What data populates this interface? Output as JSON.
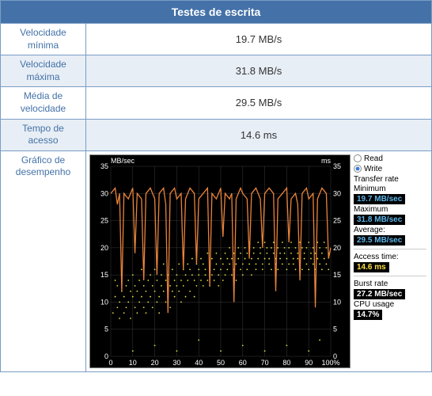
{
  "header": {
    "title": "Testes de escrita"
  },
  "rows": [
    {
      "label": "Velocidade mínima",
      "value": "19.7 MB/s"
    },
    {
      "label": "Velocidade máxima",
      "value": "31.8 MB/s"
    },
    {
      "label": "Média de velocidade",
      "value": "29.5 MB/s"
    },
    {
      "label": "Tempo de acesso",
      "value": "14.6 ms"
    }
  ],
  "chart_row_label": "Gráfico de desempenho",
  "chart": {
    "type": "line+scatter",
    "bg": "#000000",
    "line_color": "#e8833b",
    "scatter_color": "#e8e040",
    "grid_color": "#3a3a3a",
    "y_left_label": "MB/sec",
    "y_right_label": "ms",
    "y_ticks": [
      0,
      5,
      10,
      15,
      20,
      25,
      30,
      35
    ],
    "ylim": [
      0,
      35
    ],
    "x_ticks": [
      0,
      10,
      20,
      30,
      40,
      50,
      60,
      70,
      80,
      90,
      "100%"
    ],
    "xlim": [
      0,
      100
    ],
    "write_line": [
      [
        0,
        30
      ],
      [
        2,
        31
      ],
      [
        3,
        28
      ],
      [
        4,
        30
      ],
      [
        5,
        12
      ],
      [
        6,
        30
      ],
      [
        8,
        29
      ],
      [
        10,
        31
      ],
      [
        11,
        19
      ],
      [
        12,
        30
      ],
      [
        14,
        29
      ],
      [
        15,
        14
      ],
      [
        16,
        30
      ],
      [
        18,
        31
      ],
      [
        20,
        29
      ],
      [
        21,
        15
      ],
      [
        22,
        30
      ],
      [
        24,
        31
      ],
      [
        25,
        28
      ],
      [
        26,
        8
      ],
      [
        27,
        30
      ],
      [
        29,
        31
      ],
      [
        30,
        29
      ],
      [
        32,
        30
      ],
      [
        33,
        16
      ],
      [
        34,
        29
      ],
      [
        36,
        31
      ],
      [
        38,
        30
      ],
      [
        39,
        17
      ],
      [
        40,
        29
      ],
      [
        42,
        30
      ],
      [
        44,
        31
      ],
      [
        45,
        13
      ],
      [
        46,
        30
      ],
      [
        48,
        29
      ],
      [
        50,
        31
      ],
      [
        51,
        22
      ],
      [
        52,
        30
      ],
      [
        54,
        29
      ],
      [
        55,
        30
      ],
      [
        56,
        10
      ],
      [
        57,
        29
      ],
      [
        59,
        31
      ],
      [
        60,
        30
      ],
      [
        62,
        29
      ],
      [
        63,
        18
      ],
      [
        64,
        30
      ],
      [
        66,
        31
      ],
      [
        68,
        29
      ],
      [
        69,
        20
      ],
      [
        70,
        30
      ],
      [
        72,
        31
      ],
      [
        74,
        30
      ],
      [
        75,
        12
      ],
      [
        76,
        29
      ],
      [
        78,
        30
      ],
      [
        80,
        31
      ],
      [
        81,
        21
      ],
      [
        82,
        29
      ],
      [
        84,
        30
      ],
      [
        85,
        28
      ],
      [
        86,
        14
      ],
      [
        87,
        30
      ],
      [
        89,
        31
      ],
      [
        90,
        29
      ],
      [
        92,
        30
      ],
      [
        93,
        9
      ],
      [
        94,
        29
      ],
      [
        96,
        31
      ],
      [
        98,
        30
      ],
      [
        99,
        18
      ],
      [
        100,
        20
      ]
    ],
    "access_scatter": [
      [
        1,
        8
      ],
      [
        2,
        11
      ],
      [
        2,
        14
      ],
      [
        3,
        9
      ],
      [
        3,
        13
      ],
      [
        4,
        10
      ],
      [
        4,
        7
      ],
      [
        5,
        12
      ],
      [
        5,
        15
      ],
      [
        6,
        8
      ],
      [
        6,
        11
      ],
      [
        7,
        13
      ],
      [
        7,
        9
      ],
      [
        8,
        10
      ],
      [
        8,
        14
      ],
      [
        9,
        12
      ],
      [
        9,
        7
      ],
      [
        10,
        11
      ],
      [
        10,
        15
      ],
      [
        11,
        9
      ],
      [
        11,
        13
      ],
      [
        12,
        8
      ],
      [
        12,
        12
      ],
      [
        13,
        14
      ],
      [
        13,
        10
      ],
      [
        14,
        11
      ],
      [
        14,
        16
      ],
      [
        15,
        9
      ],
      [
        15,
        13
      ],
      [
        16,
        12
      ],
      [
        16,
        8
      ],
      [
        17,
        14
      ],
      [
        17,
        10
      ],
      [
        18,
        11
      ],
      [
        18,
        15
      ],
      [
        19,
        13
      ],
      [
        19,
        9
      ],
      [
        20,
        12
      ],
      [
        20,
        16
      ],
      [
        21,
        14
      ],
      [
        21,
        10
      ],
      [
        22,
        11
      ],
      [
        22,
        8
      ],
      [
        23,
        15
      ],
      [
        23,
        13
      ],
      [
        24,
        12
      ],
      [
        24,
        17
      ],
      [
        25,
        14
      ],
      [
        25,
        10
      ],
      [
        26,
        11
      ],
      [
        26,
        15
      ],
      [
        27,
        13
      ],
      [
        27,
        9
      ],
      [
        28,
        16
      ],
      [
        28,
        12
      ],
      [
        29,
        14
      ],
      [
        29,
        11
      ],
      [
        30,
        15
      ],
      [
        30,
        13
      ],
      [
        31,
        17
      ],
      [
        31,
        12
      ],
      [
        32,
        14
      ],
      [
        32,
        10
      ],
      [
        33,
        16
      ],
      [
        33,
        13
      ],
      [
        34,
        15
      ],
      [
        34,
        11
      ],
      [
        35,
        17
      ],
      [
        35,
        14
      ],
      [
        36,
        16
      ],
      [
        36,
        12
      ],
      [
        37,
        15
      ],
      [
        37,
        18
      ],
      [
        38,
        14
      ],
      [
        38,
        11
      ],
      [
        39,
        17
      ],
      [
        39,
        13
      ],
      [
        40,
        16
      ],
      [
        40,
        15
      ],
      [
        41,
        14
      ],
      [
        41,
        18
      ],
      [
        42,
        17
      ],
      [
        42,
        13
      ],
      [
        43,
        16
      ],
      [
        43,
        15
      ],
      [
        44,
        14
      ],
      [
        44,
        19
      ],
      [
        45,
        17
      ],
      [
        45,
        13
      ],
      [
        46,
        18
      ],
      [
        46,
        15
      ],
      [
        47,
        16
      ],
      [
        47,
        14
      ],
      [
        48,
        19
      ],
      [
        48,
        17
      ],
      [
        49,
        15
      ],
      [
        49,
        13
      ],
      [
        50,
        18
      ],
      [
        50,
        16
      ],
      [
        51,
        17
      ],
      [
        51,
        14
      ],
      [
        52,
        19
      ],
      [
        52,
        15
      ],
      [
        53,
        18
      ],
      [
        53,
        16
      ],
      [
        54,
        17
      ],
      [
        54,
        20
      ],
      [
        55,
        15
      ],
      [
        55,
        18
      ],
      [
        56,
        19
      ],
      [
        56,
        16
      ],
      [
        57,
        17
      ],
      [
        57,
        14
      ],
      [
        58,
        20
      ],
      [
        58,
        18
      ],
      [
        59,
        16
      ],
      [
        59,
        19
      ],
      [
        60,
        17
      ],
      [
        60,
        15
      ],
      [
        61,
        18
      ],
      [
        61,
        20
      ],
      [
        62,
        19
      ],
      [
        62,
        16
      ],
      [
        63,
        17
      ],
      [
        63,
        21
      ],
      [
        64,
        18
      ],
      [
        64,
        15
      ],
      [
        65,
        20
      ],
      [
        65,
        19
      ],
      [
        66,
        17
      ],
      [
        66,
        16
      ],
      [
        67,
        21
      ],
      [
        67,
        18
      ],
      [
        68,
        19
      ],
      [
        68,
        20
      ],
      [
        69,
        17
      ],
      [
        69,
        16
      ],
      [
        70,
        18
      ],
      [
        70,
        21
      ],
      [
        71,
        20
      ],
      [
        71,
        19
      ],
      [
        72,
        17
      ],
      [
        72,
        18
      ],
      [
        73,
        16
      ],
      [
        73,
        20
      ],
      [
        74,
        19
      ],
      [
        74,
        21
      ],
      [
        75,
        18
      ],
      [
        75,
        17
      ],
      [
        76,
        20
      ],
      [
        76,
        16
      ],
      [
        77,
        19
      ],
      [
        77,
        18
      ],
      [
        78,
        21
      ],
      [
        78,
        17
      ],
      [
        79,
        20
      ],
      [
        79,
        19
      ],
      [
        80,
        18
      ],
      [
        80,
        16
      ],
      [
        81,
        17
      ],
      [
        81,
        20
      ],
      [
        82,
        19
      ],
      [
        82,
        21
      ],
      [
        83,
        18
      ],
      [
        83,
        17
      ],
      [
        84,
        16
      ],
      [
        84,
        20
      ],
      [
        85,
        19
      ],
      [
        85,
        18
      ],
      [
        86,
        17
      ],
      [
        86,
        21
      ],
      [
        87,
        20
      ],
      [
        87,
        16
      ],
      [
        88,
        19
      ],
      [
        88,
        18
      ],
      [
        89,
        17
      ],
      [
        89,
        20
      ],
      [
        90,
        21
      ],
      [
        90,
        16
      ],
      [
        91,
        19
      ],
      [
        91,
        18
      ],
      [
        92,
        17
      ],
      [
        92,
        20
      ],
      [
        93,
        16
      ],
      [
        93,
        19
      ],
      [
        94,
        18
      ],
      [
        94,
        21
      ],
      [
        95,
        17
      ],
      [
        95,
        20
      ],
      [
        96,
        19
      ],
      [
        96,
        16
      ],
      [
        97,
        18
      ],
      [
        97,
        21
      ],
      [
        98,
        17
      ],
      [
        98,
        20
      ],
      [
        99,
        19
      ],
      [
        99,
        16
      ],
      [
        10,
        1
      ],
      [
        20,
        2
      ],
      [
        30,
        1
      ],
      [
        40,
        3
      ],
      [
        50,
        1
      ],
      [
        60,
        2
      ],
      [
        70,
        1
      ],
      [
        80,
        2
      ],
      [
        90,
        1
      ],
      [
        95,
        3
      ]
    ]
  },
  "legend": {
    "read_label": "Read",
    "write_label": "Write",
    "transfer_rate_label": "Transfer rate",
    "minimum_label": "Minimum",
    "minimum_value": "19.7 MB/sec",
    "maximum_label": "Maximum",
    "maximum_value": "31.8 MB/sec",
    "average_label": "Average:",
    "average_value": "29.5 MB/sec",
    "access_time_label": "Access time:",
    "access_time_value": "14.6 ms",
    "burst_rate_label": "Burst rate",
    "burst_rate_value": "27.2 MB/sec",
    "cpu_usage_label": "CPU usage",
    "cpu_usage_value": "14.7%"
  }
}
